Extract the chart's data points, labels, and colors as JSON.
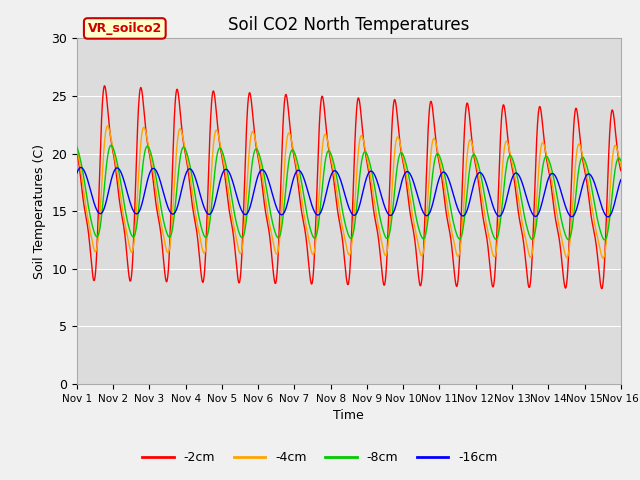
{
  "title": "Soil CO2 North Temperatures",
  "xlabel": "Time",
  "ylabel": "Soil Temperatures (C)",
  "ylim": [
    0,
    30
  ],
  "xlim": [
    0,
    15
  ],
  "fig_facecolor": "#f0f0f0",
  "plot_bg_color": "#dcdcdc",
  "xtick_labels": [
    "Nov 1",
    "Nov 2",
    "Nov 3",
    "Nov 4",
    "Nov 5",
    "Nov 6",
    "Nov 7",
    "Nov 8",
    "Nov 9",
    "Nov 10",
    "Nov 11",
    "Nov 12",
    "Nov 13",
    "Nov 14",
    "Nov 15",
    "Nov 16"
  ],
  "ytick_values": [
    0,
    5,
    10,
    15,
    20,
    25,
    30
  ],
  "series": {
    "2cm": {
      "color": "#ff0000",
      "label": "-2cm"
    },
    "4cm": {
      "color": "#ffa500",
      "label": "-4cm"
    },
    "8cm": {
      "color": "#00cc00",
      "label": "-8cm"
    },
    "16cm": {
      "color": "#0000ff",
      "label": "-16cm"
    }
  },
  "annot_label": "VR_soilco2",
  "annot_facecolor": "#ffffcc",
  "annot_edgecolor": "#cc0000",
  "n_points": 2000
}
